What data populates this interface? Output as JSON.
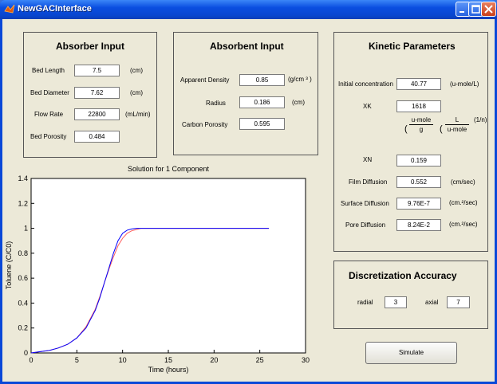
{
  "window": {
    "title": "NewGACInterface"
  },
  "absorber": {
    "title": "Absorber Input",
    "bed_length_label": "Bed Length",
    "bed_length_value": "7.5",
    "bed_length_unit": "(cm)",
    "bed_diameter_label": "Bed Diameter",
    "bed_diameter_value": "7.62",
    "bed_diameter_unit": "(cm)",
    "flow_rate_label": "Flow Rate",
    "flow_rate_value": "22800",
    "flow_rate_unit": "(mL/min)",
    "bed_porosity_label": "Bed Porosity",
    "bed_porosity_value": "0.484"
  },
  "absorbent": {
    "title": "Absorbent Input",
    "apparent_density_label": "Apparent Density",
    "apparent_density_value": "0.85",
    "apparent_density_unit": "(g/cm ³ )",
    "radius_label": "Radius",
    "radius_value": "0.186",
    "radius_unit": "(cm)",
    "carbon_porosity_label": "Carbon Porosity",
    "carbon_porosity_value": "0.595"
  },
  "kinetic": {
    "title": "Kinetic Parameters",
    "initial_conc_label": "Initial concentration",
    "initial_conc_value": "40.77",
    "initial_conc_unit": "(u-mole/L)",
    "xk_label": "XK",
    "xk_value": "1618",
    "xk_unit_open1": "(",
    "xk_unit_num1": "u-mole",
    "xk_unit_den1": "g",
    "xk_unit_open2": "(",
    "xk_unit_num2": "L",
    "xk_unit_den2": "u-mole",
    "xk_unit_exp": "(1/n)",
    "xn_label": "XN",
    "xn_value": "0.159",
    "film_label": "Film Diffusion",
    "film_value": "0.552",
    "film_unit": "(cm/sec)",
    "surface_label": "Surface Diffusion",
    "surface_value": "9.76E-7",
    "surface_unit": "(cm.²/sec)",
    "pore_label": "Pore Diffusion",
    "pore_value": "8.24E-2",
    "pore_unit": "(cm.²/sec)"
  },
  "discretization": {
    "title": "Discretization Accuracy",
    "radial_label": "radial",
    "radial_value": "3",
    "axial_label": "axial",
    "axial_value": "7"
  },
  "simulate_label": "Simulate",
  "chart_data": {
    "type": "line",
    "title": "Solution for 1 Component",
    "xlabel": "Time  (hours)",
    "ylabel": "Toluene (C/C0)",
    "xlim": [
      0,
      30
    ],
    "ylim": [
      0,
      1.4
    ],
    "xticks": [
      "0",
      "5",
      "10",
      "15",
      "20",
      "25",
      "30"
    ],
    "yticks": [
      "0",
      "0.2",
      "0.4",
      "0.6",
      "0.8",
      "1",
      "1.2",
      "1.4"
    ],
    "grid": false,
    "colors": {
      "series1": "#0000ff",
      "series2": "#ff6060"
    },
    "series": [
      {
        "x": [
          0,
          1,
          2,
          3,
          4,
          5,
          6,
          7,
          7.5,
          8,
          8.5,
          9,
          9.5,
          10,
          10.5,
          11,
          11.5,
          12,
          13,
          15,
          20,
          26
        ],
        "y": [
          0,
          0.01,
          0.02,
          0.04,
          0.07,
          0.12,
          0.2,
          0.34,
          0.44,
          0.56,
          0.68,
          0.8,
          0.9,
          0.96,
          0.985,
          0.995,
          1.0,
          1.0,
          1.0,
          1.0,
          1.0,
          1.0
        ]
      },
      {
        "x": [
          0,
          1,
          2,
          3,
          4,
          5,
          6,
          7,
          7.5,
          8,
          8.5,
          9,
          9.5,
          10,
          10.5,
          11,
          11.5,
          12,
          13,
          15,
          20,
          26
        ],
        "y": [
          0,
          0.01,
          0.02,
          0.04,
          0.07,
          0.12,
          0.21,
          0.35,
          0.45,
          0.56,
          0.67,
          0.77,
          0.86,
          0.92,
          0.96,
          0.98,
          0.99,
          1.0,
          1.0,
          1.0,
          1.0,
          1.0
        ]
      }
    ]
  }
}
